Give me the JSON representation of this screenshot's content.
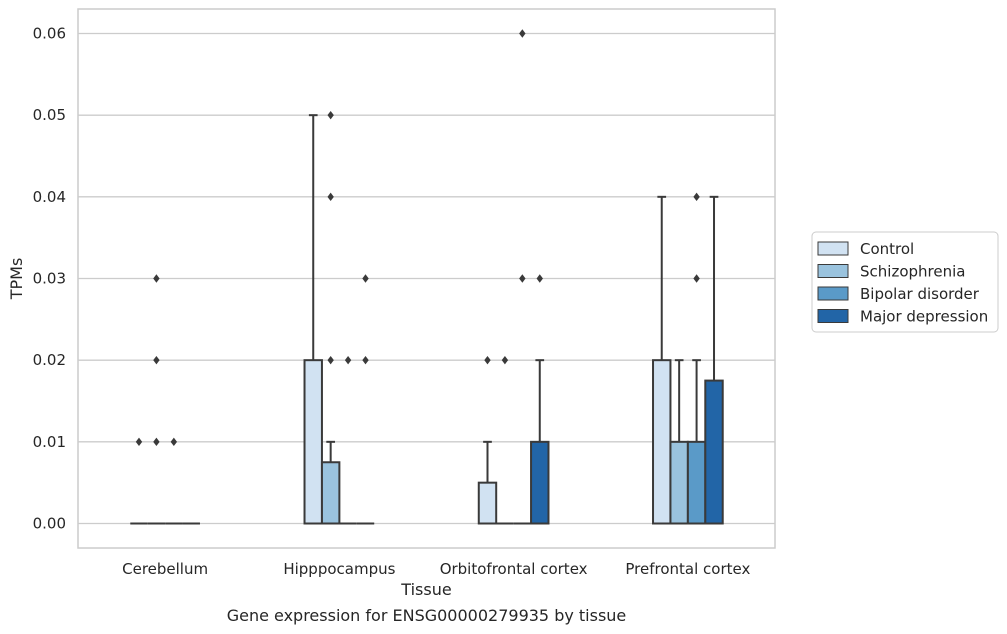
{
  "chart_data": {
    "type": "box",
    "xlabel": "Tissue",
    "ylabel": "TPMs",
    "caption": "Gene expression for ENSG00000279935 by tissue",
    "ylim": [
      -0.003,
      0.063
    ],
    "yticks": [
      "0.00",
      "0.01",
      "0.02",
      "0.03",
      "0.04",
      "0.05",
      "0.06"
    ],
    "ytick_values": [
      0.0,
      0.01,
      0.02,
      0.03,
      0.04,
      0.05,
      0.06
    ],
    "grid": true,
    "legend_position": "right",
    "categories": [
      "Cerebellum",
      "Hipppocampus",
      "Orbitofrontal cortex",
      "Prefrontal cortex"
    ],
    "series": [
      {
        "name": "Control",
        "color": "#d1e2f2",
        "boxes": [
          {
            "q1": 0.0,
            "median": 0.0,
            "q3": 0.0,
            "whislo": 0.0,
            "whishi": 0.0,
            "fliers": [
              0.01
            ]
          },
          {
            "q1": 0.0,
            "median": 0.0,
            "q3": 0.02,
            "whislo": 0.0,
            "whishi": 0.05,
            "fliers": []
          },
          {
            "q1": 0.0,
            "median": 0.0,
            "q3": 0.005,
            "whislo": 0.0,
            "whishi": 0.01,
            "fliers": [
              0.02
            ]
          },
          {
            "q1": 0.0,
            "median": 0.0,
            "q3": 0.02,
            "whislo": 0.0,
            "whishi": 0.04,
            "fliers": []
          }
        ]
      },
      {
        "name": "Schizophrenia",
        "color": "#9ac3de",
        "boxes": [
          {
            "q1": 0.0,
            "median": 0.0,
            "q3": 0.0,
            "whislo": 0.0,
            "whishi": 0.0,
            "fliers": [
              0.01,
              0.02,
              0.03
            ]
          },
          {
            "q1": 0.0,
            "median": 0.0,
            "q3": 0.0075,
            "whislo": 0.0,
            "whishi": 0.01,
            "fliers": [
              0.02,
              0.04,
              0.05
            ]
          },
          {
            "q1": 0.0,
            "median": 0.0,
            "q3": 0.0,
            "whislo": 0.0,
            "whishi": 0.0,
            "fliers": [
              0.02
            ]
          },
          {
            "q1": 0.0,
            "median": 0.0,
            "q3": 0.01,
            "whislo": 0.0,
            "whishi": 0.02,
            "fliers": []
          }
        ]
      },
      {
        "name": "Bipolar disorder",
        "color": "#5a9ac8",
        "boxes": [
          {
            "q1": 0.0,
            "median": 0.0,
            "q3": 0.0,
            "whislo": 0.0,
            "whishi": 0.0,
            "fliers": [
              0.01
            ]
          },
          {
            "q1": 0.0,
            "median": 0.0,
            "q3": 0.0,
            "whislo": 0.0,
            "whishi": 0.0,
            "fliers": [
              0.02
            ]
          },
          {
            "q1": 0.0,
            "median": 0.0,
            "q3": 0.0,
            "whislo": 0.0,
            "whishi": 0.0,
            "fliers": [
              0.03,
              0.06
            ]
          },
          {
            "q1": 0.0,
            "median": 0.0,
            "q3": 0.01,
            "whislo": 0.0,
            "whishi": 0.02,
            "fliers": [
              0.03,
              0.04
            ]
          }
        ]
      },
      {
        "name": "Major depression",
        "color": "#2265a7",
        "boxes": [
          {
            "q1": 0.0,
            "median": 0.0,
            "q3": 0.0,
            "whislo": 0.0,
            "whishi": 0.0,
            "fliers": []
          },
          {
            "q1": 0.0,
            "median": 0.0,
            "q3": 0.0,
            "whislo": 0.0,
            "whishi": 0.0,
            "fliers": [
              0.02,
              0.03
            ]
          },
          {
            "q1": 0.0,
            "median": 0.0,
            "q3": 0.01,
            "whislo": 0.0,
            "whishi": 0.02,
            "fliers": [
              0.03
            ]
          },
          {
            "q1": 0.0,
            "median": 0.0,
            "q3": 0.0175,
            "whislo": 0.0,
            "whishi": 0.04,
            "fliers": []
          }
        ]
      }
    ]
  }
}
